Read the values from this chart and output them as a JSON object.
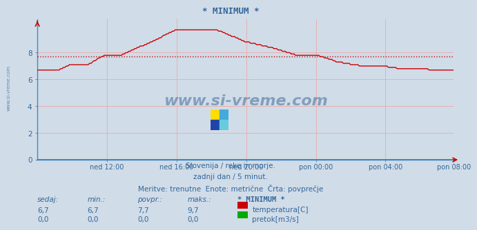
{
  "title": "* MINIMUM *",
  "bg_color": "#d0dce8",
  "plot_bg_color": "#d0dce8",
  "grid_color": "#e8b0b0",
  "temp_line_color": "#cc0000",
  "pretok_line_color": "#00aa00",
  "avg_line_color": "#cc0000",
  "avg_line_value": 7.7,
  "ylim": [
    0,
    10.5
  ],
  "yticks": [
    0,
    2,
    4,
    6,
    8
  ],
  "text_color": "#336699",
  "watermark": "www.si-vreme.com",
  "subtitle1": "Slovenija / reke in morje.",
  "subtitle2": "zadnji dan / 5 minut.",
  "subtitle3": "Meritve: trenutne  Enote: metrične  Črta: povprečje",
  "table_headers": [
    "sedaj:",
    "min.:",
    "povpr.:",
    "maks.:",
    "* MINIMUM *"
  ],
  "table_row1": [
    "6,7",
    "6,7",
    "7,7",
    "9,7"
  ],
  "table_row2": [
    "0,0",
    "0,0",
    "0,0",
    "0,0"
  ],
  "legend_temp": "temperatura[C]",
  "legend_pretok": "pretok[m3/s]",
  "xtick_labels": [
    "ned 12:00",
    "ned 16:00",
    "ned 20:00",
    "pon 00:00",
    "pon 04:00",
    "pon 08:00"
  ],
  "n_points": 288,
  "left_watermark": "www.si-vreme.com"
}
